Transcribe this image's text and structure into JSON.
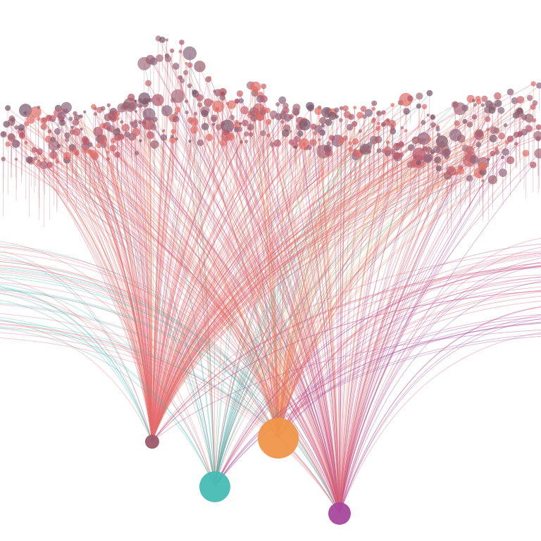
{
  "diagram": {
    "type": "bipartite-arc-network",
    "background": "#ffffff",
    "hubs": [
      {
        "id": "hub-maroon",
        "color": "#9c5a6c"
      },
      {
        "id": "hub-teal",
        "color": "#46bcb4"
      },
      {
        "id": "hub-orange",
        "color": "#f0954a"
      },
      {
        "id": "hub-purple",
        "color": "#a8489c"
      }
    ],
    "node_colors": [
      "#9a6470",
      "#b45a6c",
      "#c86a70",
      "#8f6a80",
      "#e0706a",
      "#a87080",
      "#7a5a6c"
    ],
    "edge_colors": [
      "#e8707a",
      "#f07a5a",
      "#d9607a",
      "#46bcb4",
      "#a8489c",
      "#f0954a"
    ]
  }
}
